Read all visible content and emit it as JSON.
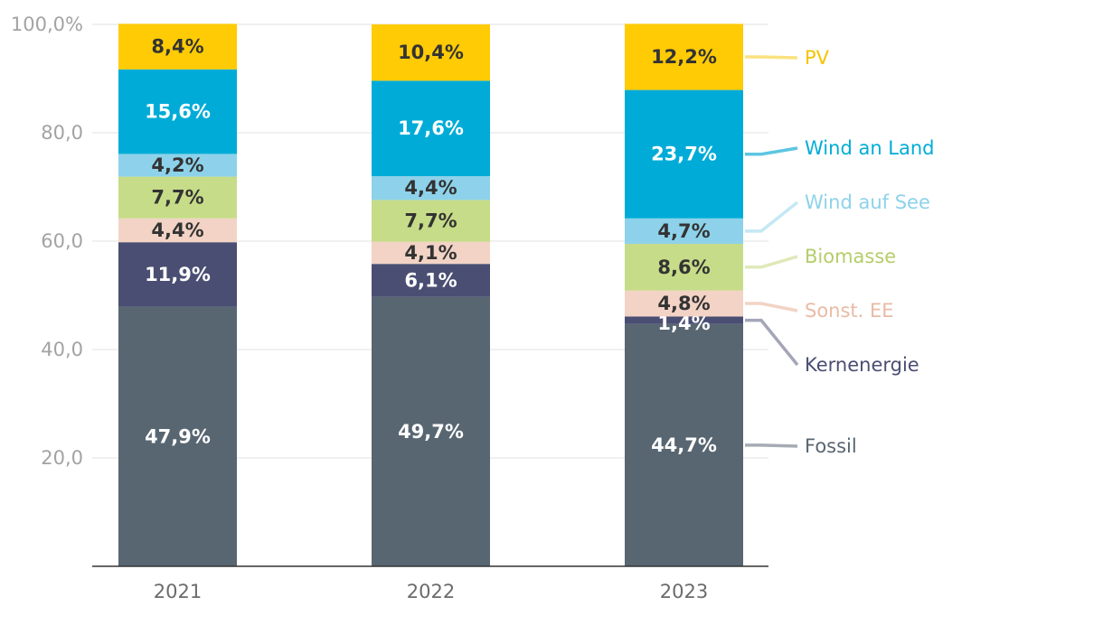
{
  "chart_data": {
    "type": "bar",
    "stacked": true,
    "categories": [
      "2021",
      "2022",
      "2023"
    ],
    "y_tick_labels": [
      "20,0",
      "40,0",
      "60,0",
      "80,0",
      "100,0%"
    ],
    "y_tick_values": [
      20,
      40,
      60,
      80,
      100
    ],
    "ylim": [
      0,
      100
    ],
    "series": [
      {
        "name": "Fossil",
        "color": "#586672",
        "text_color": "#ffffff",
        "values": [
          47.9,
          49.7,
          44.7
        ],
        "labels": [
          "47,9%",
          "49,7%",
          "44,7%"
        ],
        "legend_color": "#586672",
        "line_color": "#a6acb4"
      },
      {
        "name": "Kernenergie",
        "color": "#4a4e72",
        "text_color": "#ffffff",
        "values": [
          11.9,
          6.1,
          1.4
        ],
        "labels": [
          "11,9%",
          "6,1%",
          "1,4%"
        ],
        "legend_color": "#4a4e72",
        "line_color": "#a4a6b8"
      },
      {
        "name": "Sonst. EE",
        "color": "#f2d3c5",
        "text_color": "#333333",
        "values": [
          4.4,
          4.1,
          4.8
        ],
        "labels": [
          "4,4%",
          "4,1%",
          "4,8%"
        ],
        "legend_color": "#e9bba6",
        "line_color": "#f2d3c5"
      },
      {
        "name": "Biomasse",
        "color": "#c6dc88",
        "text_color": "#333333",
        "values": [
          7.7,
          7.7,
          8.6
        ],
        "labels": [
          "7,7%",
          "7,7%",
          "8,6%"
        ],
        "legend_color": "#b4ce6a",
        "line_color": "#dfe9b8"
      },
      {
        "name": "Wind auf See",
        "color": "#8dd2ea",
        "text_color": "#333333",
        "values": [
          4.2,
          4.4,
          4.7
        ],
        "labels": [
          "4,2%",
          "4,4%",
          "4,7%"
        ],
        "legend_color": "#8dd2ea",
        "line_color": "#c5e8f4"
      },
      {
        "name": "Wind an Land",
        "color": "#00acd7",
        "text_color": "#ffffff",
        "values": [
          15.6,
          17.6,
          23.7
        ],
        "labels": [
          "15,6%",
          "17,6%",
          "23,7%"
        ],
        "legend_color": "#00acd7",
        "line_color": "#5cc6e2"
      },
      {
        "name": "PV",
        "color": "#ffcb05",
        "text_color": "#333333",
        "values": [
          8.4,
          10.4,
          12.2
        ],
        "labels": [
          "8,4%",
          "10,4%",
          "12,2%"
        ],
        "legend_color": "#f5c400",
        "line_color": "#fbe27f"
      }
    ],
    "title": "",
    "xlabel": "",
    "ylabel": "",
    "grid": true,
    "legend": "right"
  }
}
